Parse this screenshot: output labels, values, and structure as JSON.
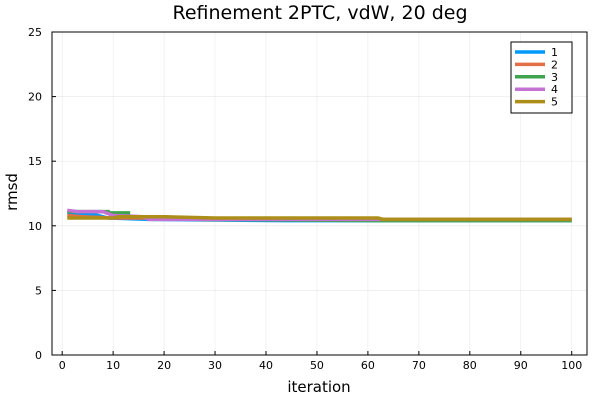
{
  "chart_data": {
    "type": "line",
    "title": "Refinement 2PTC, vdW, 20 deg",
    "xlabel": "iteration",
    "ylabel": "rmsd",
    "xlim": [
      -2,
      103
    ],
    "ylim": [
      0,
      25
    ],
    "xticks": [
      0,
      10,
      20,
      30,
      40,
      50,
      60,
      70,
      80,
      90,
      100
    ],
    "yticks": [
      0,
      5,
      10,
      15,
      20,
      25
    ],
    "grid": true,
    "legend_position": "top-right",
    "series": [
      {
        "name": "1",
        "color": "#009AFA",
        "points": [
          [
            1,
            11.0
          ],
          [
            6,
            10.9
          ],
          [
            9,
            10.6
          ],
          [
            17,
            10.5
          ],
          [
            44,
            10.4
          ],
          [
            62,
            10.4
          ],
          [
            100,
            10.4
          ]
        ]
      },
      {
        "name": "2",
        "color": "#E26F46",
        "points": [
          [
            1,
            10.8
          ],
          [
            4,
            10.7
          ],
          [
            10,
            10.6
          ],
          [
            20,
            10.6
          ],
          [
            27,
            10.5
          ],
          [
            62,
            10.5
          ],
          [
            100,
            10.5
          ]
        ]
      },
      {
        "name": "3",
        "color": "#3EA44E",
        "points": [
          [
            1,
            11.1
          ],
          [
            9,
            11.1
          ],
          [
            9,
            11.0
          ],
          [
            13,
            11.0
          ],
          [
            13,
            10.7
          ],
          [
            20,
            10.7
          ],
          [
            26,
            10.5
          ],
          [
            62,
            10.4
          ],
          [
            100,
            10.4
          ]
        ]
      },
      {
        "name": "4",
        "color": "#C371D2",
        "points": [
          [
            1,
            11.2
          ],
          [
            3,
            11.1
          ],
          [
            8,
            11.1
          ],
          [
            10,
            10.8
          ],
          [
            16,
            10.7
          ],
          [
            17,
            10.5
          ],
          [
            26,
            10.5
          ],
          [
            62,
            10.5
          ],
          [
            100,
            10.5
          ]
        ]
      },
      {
        "name": "5",
        "color": "#AC8E18",
        "points": [
          [
            1,
            10.6
          ],
          [
            10,
            10.6
          ],
          [
            11,
            10.7
          ],
          [
            20,
            10.7
          ],
          [
            30,
            10.6
          ],
          [
            62,
            10.6
          ],
          [
            63,
            10.5
          ],
          [
            100,
            10.5
          ]
        ]
      }
    ]
  }
}
